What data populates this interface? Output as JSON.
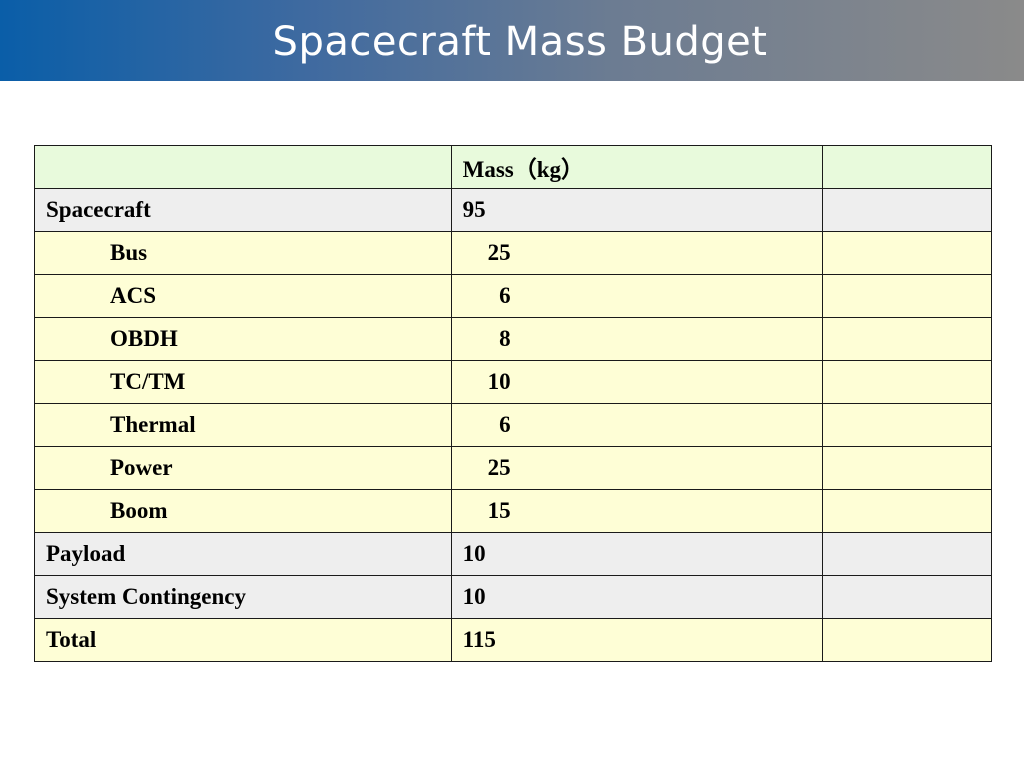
{
  "title": "Spacecraft Mass Budget",
  "table": {
    "header": [
      "",
      "Mass（kg）",
      ""
    ],
    "rows": [
      {
        "label": "Spacecraft",
        "mass": "95",
        "extra": "",
        "style": "grey",
        "sub": false
      },
      {
        "label": "Bus",
        "mass": "25",
        "extra": "",
        "style": "yellow",
        "sub": true
      },
      {
        "label": "ACS",
        "mass": "6",
        "extra": "",
        "style": "yellow",
        "sub": true
      },
      {
        "label": "OBDH",
        "mass": "8",
        "extra": "",
        "style": "yellow",
        "sub": true
      },
      {
        "label": "TC/TM",
        "mass": "10",
        "extra": "",
        "style": "yellow",
        "sub": true
      },
      {
        "label": "Thermal",
        "mass": "6",
        "extra": "",
        "style": "yellow",
        "sub": true
      },
      {
        "label": "Power",
        "mass": "25",
        "extra": "",
        "style": "yellow",
        "sub": true
      },
      {
        "label": "Boom",
        "mass": "15",
        "extra": "",
        "style": "yellow",
        "sub": true
      },
      {
        "label": "Payload",
        "mass": "10",
        "extra": "",
        "style": "grey",
        "sub": false
      },
      {
        "label": "System Contingency",
        "mass": "10",
        "extra": "",
        "style": "grey",
        "sub": false
      },
      {
        "label": "Total",
        "mass": "115",
        "extra": "",
        "style": "yellow",
        "sub": false
      }
    ]
  }
}
